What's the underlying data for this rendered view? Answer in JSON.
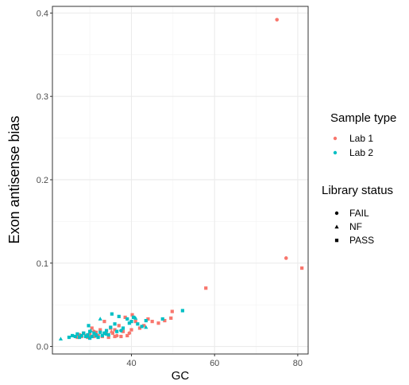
{
  "chart_data": {
    "type": "scatter",
    "title": "",
    "xlabel": "GC",
    "ylabel": "Exon antisense bias",
    "xlim": [
      21,
      82.5
    ],
    "ylim": [
      -0.009,
      0.408
    ],
    "x_ticks": [
      40,
      60,
      80
    ],
    "x_tick_labels": [
      "40",
      "60",
      "80"
    ],
    "y_ticks": [
      0.0,
      0.1,
      0.2,
      0.3,
      0.4
    ],
    "y_tick_labels": [
      "0.0",
      "0.1",
      "0.2",
      "0.3",
      "0.4"
    ],
    "grid": true,
    "colors": {
      "Lab 1": "#F8766D",
      "Lab 2": "#00BFC4"
    },
    "legends": [
      {
        "title": "Sample type",
        "items": [
          "Lab 1",
          "Lab 2"
        ]
      },
      {
        "title": "Library status",
        "items": [
          "FAIL",
          "NF",
          "PASS"
        ]
      }
    ],
    "points": [
      {
        "x": 75,
        "y": 0.392,
        "type": "Lab 1",
        "status": "FAIL"
      },
      {
        "x": 77.2,
        "y": 0.106,
        "type": "Lab 1",
        "status": "FAIL"
      },
      {
        "x": 81,
        "y": 0.094,
        "type": "Lab 1",
        "status": "PASS"
      },
      {
        "x": 57.9,
        "y": 0.07,
        "type": "Lab 1",
        "status": "PASS"
      },
      {
        "x": 49.8,
        "y": 0.042,
        "type": "Lab 1",
        "status": "PASS"
      },
      {
        "x": 49.5,
        "y": 0.034,
        "type": "Lab 1",
        "status": "PASS"
      },
      {
        "x": 48,
        "y": 0.031,
        "type": "Lab 1",
        "status": "PASS"
      },
      {
        "x": 46.5,
        "y": 0.028,
        "type": "Lab 1",
        "status": "PASS"
      },
      {
        "x": 45,
        "y": 0.03,
        "type": "Lab 1",
        "status": "PASS"
      },
      {
        "x": 44,
        "y": 0.033,
        "type": "Lab 1",
        "status": "PASS"
      },
      {
        "x": 43,
        "y": 0.025,
        "type": "Lab 1",
        "status": "PASS"
      },
      {
        "x": 42,
        "y": 0.022,
        "type": "Lab 1",
        "status": "PASS"
      },
      {
        "x": 41,
        "y": 0.03,
        "type": "Lab 1",
        "status": "PASS"
      },
      {
        "x": 40.2,
        "y": 0.038,
        "type": "Lab 1",
        "status": "PASS"
      },
      {
        "x": 40,
        "y": 0.02,
        "type": "Lab 1",
        "status": "PASS"
      },
      {
        "x": 39,
        "y": 0.013,
        "type": "Lab 1",
        "status": "PASS"
      },
      {
        "x": 38.5,
        "y": 0.035,
        "type": "Lab 1",
        "status": "PASS"
      },
      {
        "x": 38,
        "y": 0.018,
        "type": "Lab 1",
        "status": "PASS"
      },
      {
        "x": 37.5,
        "y": 0.012,
        "type": "Lab 1",
        "status": "PASS"
      },
      {
        "x": 37,
        "y": 0.025,
        "type": "Lab 1",
        "status": "PASS"
      },
      {
        "x": 36,
        "y": 0.02,
        "type": "Lab 1",
        "status": "PASS"
      },
      {
        "x": 36,
        "y": 0.012,
        "type": "Lab 1",
        "status": "PASS"
      },
      {
        "x": 35.5,
        "y": 0.016,
        "type": "Lab 1",
        "status": "PASS"
      },
      {
        "x": 35,
        "y": 0.022,
        "type": "Lab 1",
        "status": "PASS"
      },
      {
        "x": 34.5,
        "y": 0.011,
        "type": "Lab 1",
        "status": "PASS"
      },
      {
        "x": 34,
        "y": 0.015,
        "type": "Lab 1",
        "status": "PASS"
      },
      {
        "x": 33.5,
        "y": 0.03,
        "type": "Lab 1",
        "status": "PASS"
      },
      {
        "x": 33,
        "y": 0.012,
        "type": "Lab 1",
        "status": "PASS"
      },
      {
        "x": 32.5,
        "y": 0.02,
        "type": "Lab 1",
        "status": "PASS"
      },
      {
        "x": 32,
        "y": 0.013,
        "type": "Lab 1",
        "status": "PASS"
      },
      {
        "x": 31.5,
        "y": 0.017,
        "type": "Lab 1",
        "status": "PASS"
      },
      {
        "x": 31,
        "y": 0.012,
        "type": "Lab 1",
        "status": "PASS"
      },
      {
        "x": 30.5,
        "y": 0.022,
        "type": "Lab 1",
        "status": "PASS"
      },
      {
        "x": 30,
        "y": 0.015,
        "type": "Lab 1",
        "status": "PASS"
      },
      {
        "x": 29.5,
        "y": 0.011,
        "type": "Lab 1",
        "status": "PASS"
      },
      {
        "x": 29,
        "y": 0.013,
        "type": "Lab 1",
        "status": "PASS"
      },
      {
        "x": 28.5,
        "y": 0.016,
        "type": "Lab 1",
        "status": "PASS"
      },
      {
        "x": 28,
        "y": 0.012,
        "type": "Lab 1",
        "status": "PASS"
      },
      {
        "x": 27.5,
        "y": 0.014,
        "type": "Lab 1",
        "status": "PASS"
      },
      {
        "x": 27,
        "y": 0.011,
        "type": "Lab 1",
        "status": "PASS"
      },
      {
        "x": 36.5,
        "y": 0.013,
        "type": "Lab 1",
        "status": "FAIL"
      },
      {
        "x": 31,
        "y": 0.018,
        "type": "Lab 1",
        "status": "FAIL"
      },
      {
        "x": 39.5,
        "y": 0.016,
        "type": "Lab 1",
        "status": "FAIL"
      },
      {
        "x": 29.8,
        "y": 0.013,
        "type": "Lab 1",
        "status": "NF"
      },
      {
        "x": 35.2,
        "y": 0.018,
        "type": "Lab 1",
        "status": "NF"
      },
      {
        "x": 52.3,
        "y": 0.043,
        "type": "Lab 2",
        "status": "PASS"
      },
      {
        "x": 47.5,
        "y": 0.033,
        "type": "Lab 2",
        "status": "PASS"
      },
      {
        "x": 43.5,
        "y": 0.031,
        "type": "Lab 2",
        "status": "PASS"
      },
      {
        "x": 42.5,
        "y": 0.024,
        "type": "Lab 2",
        "status": "PASS"
      },
      {
        "x": 41.5,
        "y": 0.027,
        "type": "Lab 2",
        "status": "PASS"
      },
      {
        "x": 40.5,
        "y": 0.035,
        "type": "Lab 2",
        "status": "PASS"
      },
      {
        "x": 40,
        "y": 0.03,
        "type": "Lab 2",
        "status": "PASS"
      },
      {
        "x": 39.5,
        "y": 0.028,
        "type": "Lab 2",
        "status": "PASS"
      },
      {
        "x": 39,
        "y": 0.033,
        "type": "Lab 2",
        "status": "PASS"
      },
      {
        "x": 38,
        "y": 0.022,
        "type": "Lab 2",
        "status": "PASS"
      },
      {
        "x": 37,
        "y": 0.036,
        "type": "Lab 2",
        "status": "PASS"
      },
      {
        "x": 36.5,
        "y": 0.018,
        "type": "Lab 2",
        "status": "PASS"
      },
      {
        "x": 36,
        "y": 0.027,
        "type": "Lab 2",
        "status": "PASS"
      },
      {
        "x": 35.3,
        "y": 0.039,
        "type": "Lab 2",
        "status": "PASS"
      },
      {
        "x": 35,
        "y": 0.023,
        "type": "Lab 2",
        "status": "PASS"
      },
      {
        "x": 34.5,
        "y": 0.014,
        "type": "Lab 2",
        "status": "PASS"
      },
      {
        "x": 34,
        "y": 0.019,
        "type": "Lab 2",
        "status": "PASS"
      },
      {
        "x": 33.5,
        "y": 0.016,
        "type": "Lab 2",
        "status": "PASS"
      },
      {
        "x": 33,
        "y": 0.013,
        "type": "Lab 2",
        "status": "PASS"
      },
      {
        "x": 32.5,
        "y": 0.017,
        "type": "Lab 2",
        "status": "PASS"
      },
      {
        "x": 32,
        "y": 0.011,
        "type": "Lab 2",
        "status": "PASS"
      },
      {
        "x": 31.5,
        "y": 0.014,
        "type": "Lab 2",
        "status": "PASS"
      },
      {
        "x": 31,
        "y": 0.016,
        "type": "Lab 2",
        "status": "PASS"
      },
      {
        "x": 30.5,
        "y": 0.012,
        "type": "Lab 2",
        "status": "PASS"
      },
      {
        "x": 30,
        "y": 0.018,
        "type": "Lab 2",
        "status": "PASS"
      },
      {
        "x": 30,
        "y": 0.01,
        "type": "Lab 2",
        "status": "PASS"
      },
      {
        "x": 29.7,
        "y": 0.025,
        "type": "Lab 2",
        "status": "PASS"
      },
      {
        "x": 29.5,
        "y": 0.014,
        "type": "Lab 2",
        "status": "PASS"
      },
      {
        "x": 29,
        "y": 0.012,
        "type": "Lab 2",
        "status": "PASS"
      },
      {
        "x": 28.5,
        "y": 0.016,
        "type": "Lab 2",
        "status": "PASS"
      },
      {
        "x": 28,
        "y": 0.013,
        "type": "Lab 2",
        "status": "PASS"
      },
      {
        "x": 27.5,
        "y": 0.011,
        "type": "Lab 2",
        "status": "PASS"
      },
      {
        "x": 27,
        "y": 0.015,
        "type": "Lab 2",
        "status": "PASS"
      },
      {
        "x": 26.5,
        "y": 0.012,
        "type": "Lab 2",
        "status": "PASS"
      },
      {
        "x": 25.8,
        "y": 0.013,
        "type": "Lab 2",
        "status": "PASS"
      },
      {
        "x": 25,
        "y": 0.011,
        "type": "Lab 2",
        "status": "PASS"
      },
      {
        "x": 23,
        "y": 0.009,
        "type": "Lab 2",
        "status": "NF"
      },
      {
        "x": 32.5,
        "y": 0.033,
        "type": "Lab 2",
        "status": "NF"
      },
      {
        "x": 34,
        "y": 0.015,
        "type": "Lab 2",
        "status": "NF"
      },
      {
        "x": 41,
        "y": 0.034,
        "type": "Lab 2",
        "status": "NF"
      },
      {
        "x": 43.5,
        "y": 0.023,
        "type": "Lab 2",
        "status": "NF"
      },
      {
        "x": 30.2,
        "y": 0.019,
        "type": "Lab 2",
        "status": "NF"
      },
      {
        "x": 31.5,
        "y": 0.013,
        "type": "Lab 2",
        "status": "FAIL"
      },
      {
        "x": 33.5,
        "y": 0.016,
        "type": "Lab 2",
        "status": "FAIL"
      },
      {
        "x": 29.2,
        "y": 0.012,
        "type": "Lab 2",
        "status": "FAIL"
      },
      {
        "x": 37.5,
        "y": 0.019,
        "type": "Lab 2",
        "status": "FAIL"
      }
    ]
  }
}
